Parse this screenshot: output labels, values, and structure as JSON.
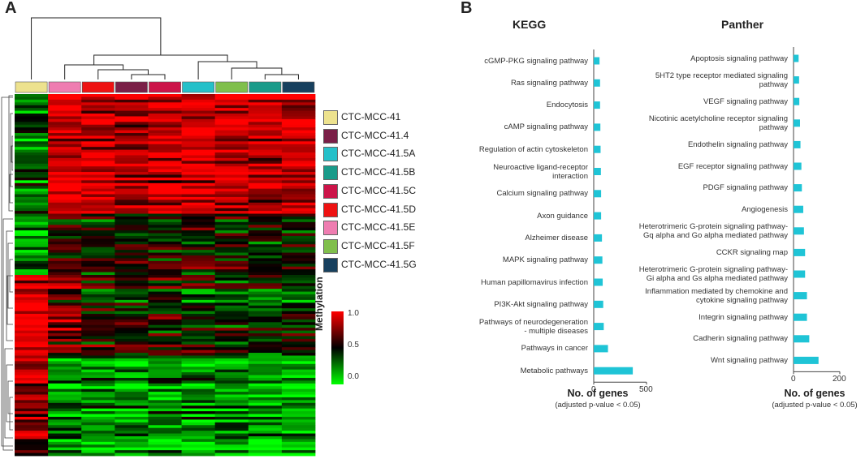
{
  "panel_a": {
    "letter": "A",
    "samples": [
      {
        "name": "CTC-MCC-41",
        "color": "#ede28e"
      },
      {
        "name": "CTC-MCC-41.4",
        "color": "#7a1f47"
      },
      {
        "name": "CTC-MCC-41.5A",
        "color": "#25c0c9"
      },
      {
        "name": "CTC-MCC-41.5B",
        "color": "#1a9b8a"
      },
      {
        "name": "CTC-MCC-41.5C",
        "color": "#cc1449"
      },
      {
        "name": "CTC-MCC-41.5D",
        "color": "#ee1212"
      },
      {
        "name": "CTC-MCC-41.5E",
        "color": "#ef7db1"
      },
      {
        "name": "CTC-MCC-41.5F",
        "color": "#80bf4c"
      },
      {
        "name": "CTC-MCC-41.5G",
        "color": "#17405e"
      }
    ],
    "column_order": [
      "CTC-MCC-41",
      "CTC-MCC-41.5E",
      "CTC-MCC-41.5D",
      "CTC-MCC-41.4",
      "CTC-MCC-41.5C",
      "CTC-MCC-41.5A",
      "CTC-MCC-41.5F",
      "CTC-MCC-41.5B",
      "CTC-MCC-41.5G"
    ],
    "colorbar": {
      "label": "Methylation",
      "ticks": [
        "1.0",
        "0.5",
        "0.0"
      ]
    }
  },
  "panel_b": {
    "letter": "B"
  },
  "chart_data": [
    {
      "type": "heatmap",
      "title": "",
      "columns": [
        "CTC-MCC-41",
        "CTC-MCC-41.5E",
        "CTC-MCC-41.5D",
        "CTC-MCC-41.4",
        "CTC-MCC-41.5C",
        "CTC-MCC-41.5A",
        "CTC-MCC-41.5F",
        "CTC-MCC-41.5B",
        "CTC-MCC-41.5G"
      ],
      "value_range": [
        0.0,
        1.0
      ],
      "colorscale": [
        "#00ff00",
        "#000000",
        "#ff0000"
      ],
      "row_blocks": [
        {
          "rows": "top",
          "means": [
            0.3,
            0.92,
            0.9,
            0.86,
            0.88,
            0.9,
            0.87,
            0.85,
            0.86
          ]
        },
        {
          "rows": "upper-middle",
          "means": [
            0.2,
            0.55,
            0.5,
            0.45,
            0.48,
            0.5,
            0.47,
            0.45,
            0.46
          ]
        },
        {
          "rows": "middle",
          "means": [
            0.92,
            0.7,
            0.55,
            0.5,
            0.52,
            0.45,
            0.42,
            0.4,
            0.42
          ]
        },
        {
          "rows": "lower",
          "means": [
            0.85,
            0.25,
            0.22,
            0.2,
            0.22,
            0.2,
            0.2,
            0.18,
            0.2
          ]
        }
      ]
    },
    {
      "type": "bar",
      "orientation": "horizontal",
      "title": "KEGG",
      "categories": [
        "cGMP-PKG signaling pathway",
        "Ras signaling pathway",
        "Endocytosis",
        "cAMP signaling pathway",
        "Regulation of actin cytoskeleton",
        "Neuroactive ligand-receptor interaction",
        "Calcium signaling pathway",
        "Axon guidance",
        "Alzheimer disease",
        "MAPK signaling pathway",
        "Human papillomavirus infection",
        "PI3K-Akt signaling pathway",
        "Pathways of neurodegeneration - multiple diseases",
        "Pathways in cancer",
        "Metabolic pathways"
      ],
      "labels": [
        [
          "cGMP-PKG signaling pathway"
        ],
        [
          "Ras signaling pathway"
        ],
        [
          "Endocytosis"
        ],
        [
          "cAMP signaling pathway"
        ],
        [
          "Regulation of actin cytoskeleton"
        ],
        [
          "Neuroactive ligand-receptor",
          "interaction"
        ],
        [
          "Calcium signaling pathway"
        ],
        [
          "Axon guidance"
        ],
        [
          "Alzheimer disease"
        ],
        [
          "MAPK signaling pathway"
        ],
        [
          "Human papillomavirus infection"
        ],
        [
          "PI3K-Akt signaling pathway"
        ],
        [
          "Pathways of neurodegeneration",
          "- multiple diseases"
        ],
        [
          "Pathways in cancer"
        ],
        [
          "Metabolic pathways"
        ]
      ],
      "values": [
        55,
        60,
        60,
        63,
        65,
        68,
        70,
        70,
        78,
        82,
        85,
        90,
        95,
        135,
        370
      ],
      "xlim": [
        0,
        500
      ],
      "xticks": [
        "0",
        "500"
      ],
      "xlabel": "No. of genes",
      "xsublabel": "(adjusted p-value < 0.05)",
      "bar_color": "#1fc4d6"
    },
    {
      "type": "bar",
      "orientation": "horizontal",
      "title": "Panther",
      "categories": [
        "Apoptosis signaling pathway",
        "5HT2 type receptor mediated signaling pathway",
        "VEGF signaling pathway",
        "Nicotinic acetylcholine receptor signaling pathway",
        "Endothelin signaling pathway",
        "EGF receptor signaling pathway",
        "PDGF signaling pathway",
        "Angiogenesis",
        "Heterotrimeric G-protein signaling pathway-Gq alpha and Go alpha mediated pathway",
        "CCKR signaling map",
        "Heterotrimeric G-protein signaling pathway-Gi alpha and Gs alpha mediated pathway",
        "Inflammation mediated by chemokine and cytokine signaling pathway",
        "Integrin signaling pathway",
        "Cadherin signaling pathway",
        "Wnt signaling pathway"
      ],
      "labels": [
        [
          "Apoptosis signaling pathway"
        ],
        [
          "5HT2 type receptor mediated signaling",
          "pathway"
        ],
        [
          "VEGF signaling pathway"
        ],
        [
          "Nicotinic acetylcholine receptor signaling",
          "pathway"
        ],
        [
          "Endothelin signaling pathway"
        ],
        [
          "EGF receptor signaling pathway"
        ],
        [
          "PDGF signaling pathway"
        ],
        [
          "Angiogenesis"
        ],
        [
          "Heterotrimeric G-protein signaling pathway-",
          "Gq alpha and Go alpha mediated pathway"
        ],
        [
          "CCKR signaling map"
        ],
        [
          "Heterotrimeric G-protein signaling pathway-",
          "Gi alpha and Gs alpha mediated pathway"
        ],
        [
          "Inflammation mediated by chemokine and",
          "cytokine signaling pathway"
        ],
        [
          "Integrin signaling pathway"
        ],
        [
          "Cadherin signaling pathway"
        ],
        [
          "Wnt signaling pathway"
        ]
      ],
      "values": [
        22,
        24,
        25,
        28,
        30,
        34,
        36,
        42,
        45,
        50,
        50,
        58,
        58,
        68,
        108
      ],
      "xlim": [
        0,
        200
      ],
      "xticks": [
        "0",
        "200"
      ],
      "xlabel": "No. of genes",
      "xsublabel": "(adjusted p-value < 0.05)",
      "bar_color": "#1fc4d6"
    }
  ]
}
